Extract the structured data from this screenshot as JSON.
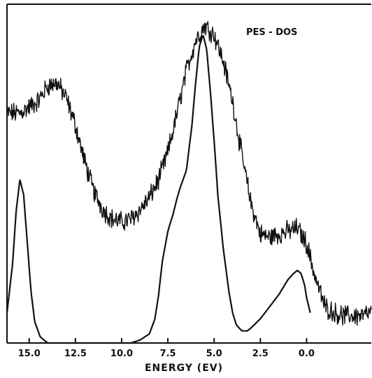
{
  "chart_data": {
    "type": "line",
    "title": "",
    "annotation": "PES - DOS",
    "xlabel": "ENERGY (EV)",
    "ylabel": "",
    "x_reversed": true,
    "xlim": [
      16.2,
      -3.5
    ],
    "ylim": [
      0,
      1.12
    ],
    "x_ticks": [
      15.0,
      12.5,
      10.0,
      7.5,
      5.0,
      2.5,
      0.0
    ],
    "x_tick_labels": [
      "15.0",
      "12.5",
      "10.0",
      "7.5",
      "5.0",
      "2.5",
      "0.0"
    ],
    "grid": false,
    "legend": "none",
    "colors": {
      "line": "#111111",
      "axis": "#111111",
      "background": "#ffffff"
    },
    "series": [
      {
        "style": "noisy",
        "x": [
          16.2,
          15.5,
          15.0,
          14.5,
          14.0,
          13.5,
          13.0,
          12.5,
          12.0,
          11.5,
          11.0,
          10.5,
          10.0,
          9.5,
          9.0,
          8.5,
          8.0,
          7.5,
          7.0,
          6.5,
          6.0,
          5.5,
          5.0,
          4.5,
          4.0,
          3.5,
          3.0,
          2.5,
          2.0,
          1.5,
          1.0,
          0.5,
          0.0,
          -0.5,
          -1.0,
          -1.5,
          -2.0,
          -2.5,
          -3.0,
          -3.5
        ],
        "y": [
          0.76,
          0.76,
          0.78,
          0.8,
          0.85,
          0.86,
          0.81,
          0.72,
          0.6,
          0.5,
          0.44,
          0.41,
          0.4,
          0.41,
          0.44,
          0.48,
          0.54,
          0.63,
          0.76,
          0.9,
          1.0,
          1.05,
          1.02,
          0.93,
          0.8,
          0.62,
          0.46,
          0.36,
          0.35,
          0.36,
          0.37,
          0.38,
          0.33,
          0.21,
          0.12,
          0.1,
          0.09,
          0.09,
          0.09,
          0.1
        ]
      },
      {
        "style": "smooth",
        "x": [
          16.2,
          15.9,
          15.7,
          15.5,
          15.3,
          15.1,
          14.9,
          14.7,
          14.4,
          14.0,
          13.5,
          9.5,
          9.0,
          8.5,
          8.2,
          8.0,
          7.8,
          7.5,
          7.2,
          7.0,
          6.8,
          6.5,
          6.2,
          6.0,
          5.8,
          5.6,
          5.4,
          5.2,
          5.0,
          4.8,
          4.5,
          4.2,
          4.0,
          3.8,
          3.5,
          3.2,
          3.0,
          2.5,
          2.0,
          1.5,
          1.0,
          0.7,
          0.5,
          0.3,
          0.1,
          0.0,
          -0.2
        ],
        "y": [
          0.1,
          0.26,
          0.44,
          0.54,
          0.49,
          0.33,
          0.17,
          0.07,
          0.02,
          0.0,
          0.0,
          0.0,
          0.01,
          0.03,
          0.08,
          0.16,
          0.27,
          0.37,
          0.43,
          0.48,
          0.52,
          0.57,
          0.72,
          0.86,
          0.98,
          1.02,
          0.97,
          0.83,
          0.67,
          0.49,
          0.31,
          0.17,
          0.1,
          0.06,
          0.04,
          0.04,
          0.05,
          0.08,
          0.12,
          0.16,
          0.21,
          0.23,
          0.24,
          0.23,
          0.19,
          0.15,
          0.1
        ]
      }
    ]
  }
}
